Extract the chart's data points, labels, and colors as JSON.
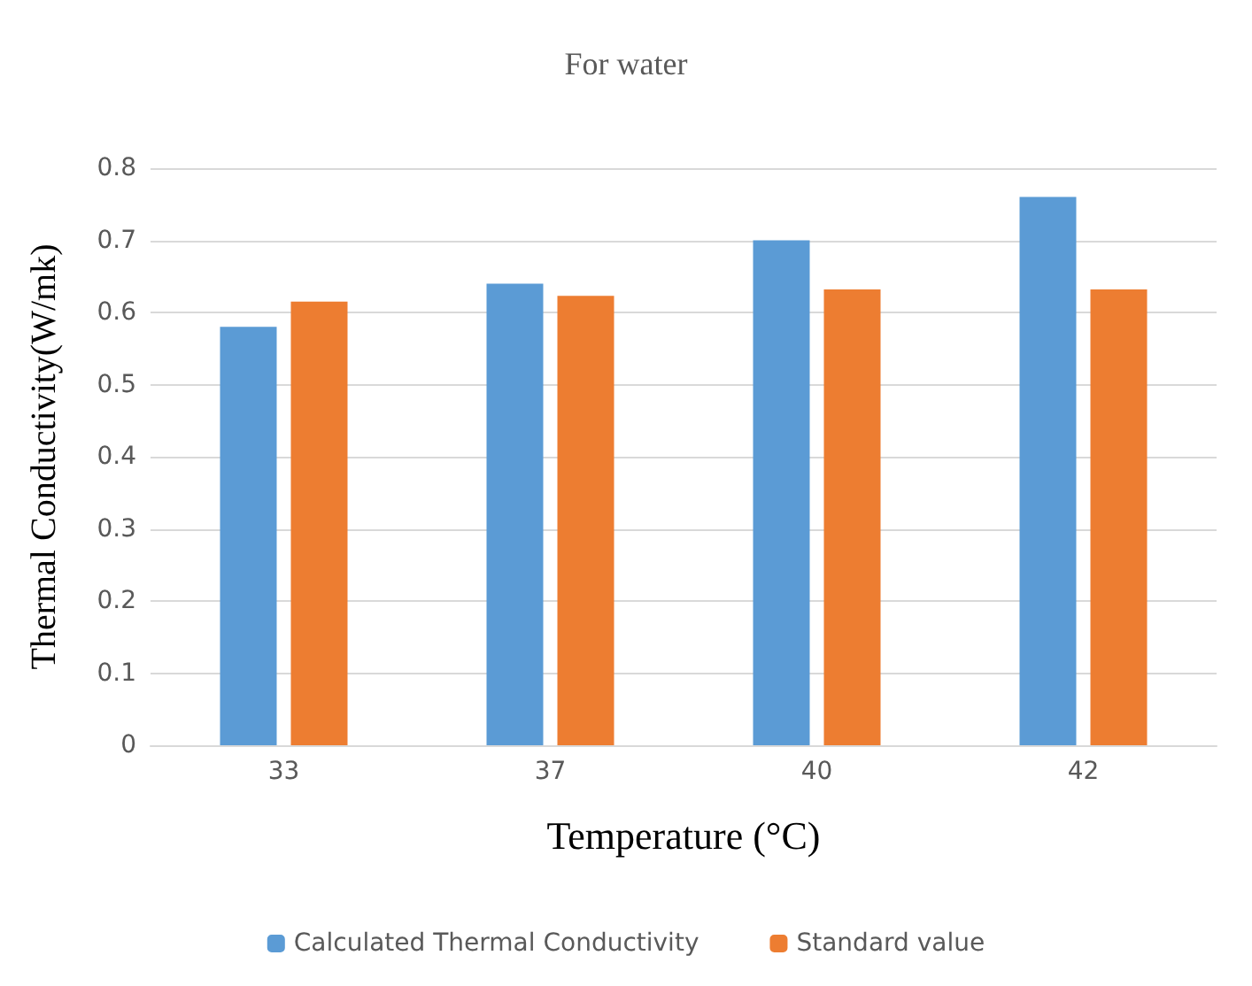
{
  "chart_data": {
    "type": "bar",
    "title": "For water",
    "xlabel": "Temperature (°C)",
    "ylabel": "Thermal Conductivity(W/mk)",
    "categories": [
      "33",
      "37",
      "40",
      "42"
    ],
    "series": [
      {
        "name": "Calculated Thermal Conductivity",
        "color": "#5b9bd5",
        "values": [
          0.58,
          0.64,
          0.7,
          0.76
        ]
      },
      {
        "name": "Standard value",
        "color": "#ed7d31",
        "values": [
          0.615,
          0.623,
          0.632,
          0.632
        ]
      }
    ],
    "ylim": [
      0,
      0.8
    ],
    "yticks": [
      0,
      0.1,
      0.2,
      0.3,
      0.4,
      0.5,
      0.6,
      0.7,
      0.8
    ],
    "grid": "y",
    "legend": "bottom"
  }
}
